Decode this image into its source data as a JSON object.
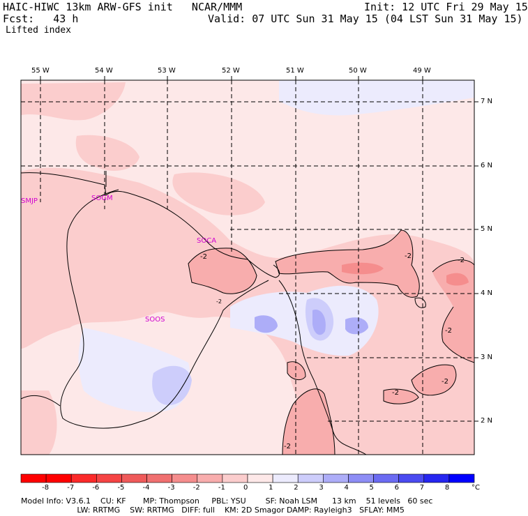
{
  "header": {
    "model_line": "HAIC-HIWC 13km ARW-GFS init   NCAR/MMM",
    "init_line": "Init: 12 UTC Fri 29 May 15",
    "fcst_line": "Fcst:   43 h",
    "valid_line": "Valid: 07 UTC Sun 31 May 15 (04 LST Sun 31 May 15)",
    "field_name": "Lifted index"
  },
  "lon_labels": [
    "55 W",
    "54 W",
    "53 W",
    "52 W",
    "51 W",
    "50 W",
    "49 W"
  ],
  "lat_labels": [
    "7 N",
    "6 N",
    "5 N",
    "4 N",
    "3 N",
    "2 N"
  ],
  "stations": [
    "SMJP",
    "SOGM",
    "SOCA",
    "SOOS"
  ],
  "contour_labels": [
    "-2",
    "-2",
    "-2",
    "-2",
    "-2",
    "-2",
    "-2",
    "-2"
  ],
  "colorbar": {
    "labels": [
      "-8",
      "-7",
      "-6",
      "-5",
      "-4",
      "-3",
      "-2",
      "-1",
      "0",
      "1",
      "2",
      "3",
      "4",
      "5",
      "6",
      "7",
      "8"
    ],
    "unit": "°C",
    "colors": [
      "#ff0000",
      "#fb2a2a",
      "#f54444",
      "#ef5a5a",
      "#f07070",
      "#f58d8d",
      "#f8adad",
      "#fbcdcd",
      "#fde8e8",
      "#ecebfd",
      "#cdcdfb",
      "#adadf8",
      "#8d8df5",
      "#6b6bf2",
      "#4a4af0",
      "#2626f0",
      "#0000ff"
    ]
  },
  "footer": {
    "line1": "Model Info: V3.6.1    CU: KF       MP: Thompson     PBL: YSU        SF: Noah LSM      13 km    51 levels   60 sec",
    "line2": "                       LW: RRTMG    SW: RRTMG   DIFF: full    KM: 2D Smagor DAMP: Rayleigh3   SFLAY: MM5"
  }
}
